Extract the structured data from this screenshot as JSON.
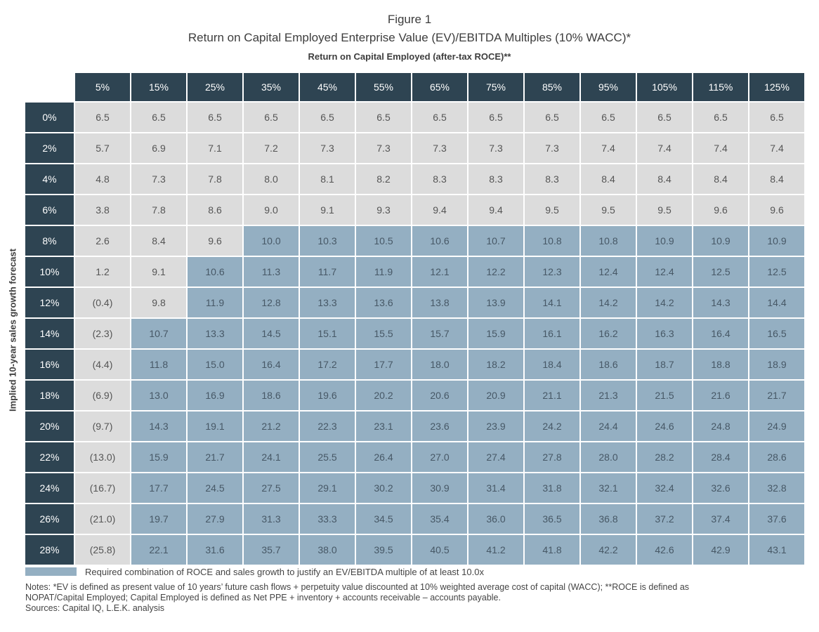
{
  "figure_label": "Figure 1",
  "title": "Return on Capital Employed Enterprise Value (EV)/EBITDA Multiples (10% WACC)*",
  "legend": {
    "text": "Required combination of ROCE and sales growth to justify an EV/EBITDA multiple of at least 10.0x",
    "color": "#94afc2"
  },
  "notes": {
    "line1": "Notes: *EV is defined as present value of 10 years’ future cash flows + perpetuity value discounted at 10% weighted average cost of capital (WACC); **ROCE is defined as",
    "line2": "NOPAT/Capital Employed; Capital Employed is defined as Net PPE + inventory + accounts receivable – accounts payable.",
    "line3": "Sources: Capital IQ, L.E.K. analysis"
  },
  "colors": {
    "header": "#2e4452",
    "below_threshold": "#dcdcdc",
    "above_threshold": "#94afc2"
  },
  "chart_data": {
    "type": "table",
    "title": "Return on Capital Employed Enterprise Value (EV)/EBITDA Multiples (10% WACC)*",
    "xlabel": "Return on Capital Employed (after-tax ROCE)**",
    "ylabel": "Implied 10-year sales growth forecast",
    "threshold": 10.0,
    "columns": [
      "5%",
      "15%",
      "25%",
      "35%",
      "45%",
      "55%",
      "65%",
      "75%",
      "85%",
      "95%",
      "105%",
      "115%",
      "125%"
    ],
    "rows": [
      "0%",
      "2%",
      "4%",
      "6%",
      "8%",
      "10%",
      "12%",
      "14%",
      "16%",
      "18%",
      "20%",
      "22%",
      "24%",
      "26%",
      "28%"
    ],
    "cells": [
      [
        "6.5",
        "6.5",
        "6.5",
        "6.5",
        "6.5",
        "6.5",
        "6.5",
        "6.5",
        "6.5",
        "6.5",
        "6.5",
        "6.5",
        "6.5"
      ],
      [
        "5.7",
        "6.9",
        "7.1",
        "7.2",
        "7.3",
        "7.3",
        "7.3",
        "7.3",
        "7.3",
        "7.4",
        "7.4",
        "7.4",
        "7.4"
      ],
      [
        "4.8",
        "7.3",
        "7.8",
        "8.0",
        "8.1",
        "8.2",
        "8.3",
        "8.3",
        "8.3",
        "8.4",
        "8.4",
        "8.4",
        "8.4"
      ],
      [
        "3.8",
        "7.8",
        "8.6",
        "9.0",
        "9.1",
        "9.3",
        "9.4",
        "9.4",
        "9.5",
        "9.5",
        "9.5",
        "9.6",
        "9.6"
      ],
      [
        "2.6",
        "8.4",
        "9.6",
        "10.0",
        "10.3",
        "10.5",
        "10.6",
        "10.7",
        "10.8",
        "10.8",
        "10.9",
        "10.9",
        "10.9"
      ],
      [
        "1.2",
        "9.1",
        "10.6",
        "11.3",
        "11.7",
        "11.9",
        "12.1",
        "12.2",
        "12.3",
        "12.4",
        "12.4",
        "12.5",
        "12.5"
      ],
      [
        "(0.4)",
        "9.8",
        "11.9",
        "12.8",
        "13.3",
        "13.6",
        "13.8",
        "13.9",
        "14.1",
        "14.2",
        "14.2",
        "14.3",
        "14.4"
      ],
      [
        "(2.3)",
        "10.7",
        "13.3",
        "14.5",
        "15.1",
        "15.5",
        "15.7",
        "15.9",
        "16.1",
        "16.2",
        "16.3",
        "16.4",
        "16.5"
      ],
      [
        "(4.4)",
        "11.8",
        "15.0",
        "16.4",
        "17.2",
        "17.7",
        "18.0",
        "18.2",
        "18.4",
        "18.6",
        "18.7",
        "18.8",
        "18.9"
      ],
      [
        "(6.9)",
        "13.0",
        "16.9",
        "18.6",
        "19.6",
        "20.2",
        "20.6",
        "20.9",
        "21.1",
        "21.3",
        "21.5",
        "21.6",
        "21.7"
      ],
      [
        "(9.7)",
        "14.3",
        "19.1",
        "21.2",
        "22.3",
        "23.1",
        "23.6",
        "23.9",
        "24.2",
        "24.4",
        "24.6",
        "24.8",
        "24.9"
      ],
      [
        "(13.0)",
        "15.9",
        "21.7",
        "24.1",
        "25.5",
        "26.4",
        "27.0",
        "27.4",
        "27.8",
        "28.0",
        "28.2",
        "28.4",
        "28.6"
      ],
      [
        "(16.7)",
        "17.7",
        "24.5",
        "27.5",
        "29.1",
        "30.2",
        "30.9",
        "31.4",
        "31.8",
        "32.1",
        "32.4",
        "32.6",
        "32.8"
      ],
      [
        "(21.0)",
        "19.7",
        "27.9",
        "31.3",
        "33.3",
        "34.5",
        "35.4",
        "36.0",
        "36.5",
        "36.8",
        "37.2",
        "37.4",
        "37.6"
      ],
      [
        "(25.8)",
        "22.1",
        "31.6",
        "35.7",
        "38.0",
        "39.5",
        "40.5",
        "41.2",
        "41.8",
        "42.2",
        "42.6",
        "42.9",
        "43.1"
      ]
    ]
  }
}
